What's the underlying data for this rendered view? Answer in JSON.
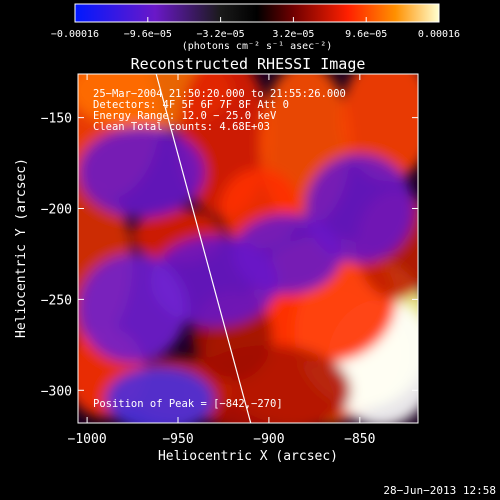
{
  "chart_data": {
    "type": "heatmap",
    "title": "Reconstructed RHESSI Image",
    "xlabel": "Heliocentric X (arcsec)",
    "ylabel": "Heliocentric Y (arcsec)",
    "xlim": [
      -1005,
      -818
    ],
    "ylim": [
      -318,
      -126
    ],
    "x_ticks": [
      -1000,
      -950,
      -900,
      -850
    ],
    "y_ticks": [
      -150,
      -200,
      -250,
      -300
    ],
    "x_tick_labels": [
      "−1000",
      "−950",
      "−900",
      "−850"
    ],
    "y_tick_labels": [
      "−150",
      "−200",
      "−250",
      "−300"
    ],
    "colorbar": {
      "range": [
        -0.00016,
        0.00016
      ],
      "ticks": [
        -0.00016,
        -9.6e-05,
        -3.2e-05,
        3.2e-05,
        9.6e-05,
        0.00016
      ],
      "tick_labels": [
        "−0.00016",
        "−9.6e−05",
        "−3.2e−05",
        "3.2e−05",
        "9.6e−05",
        "0.00016"
      ],
      "unit_label": "(photons cm⁻² s⁻¹ asec⁻²)"
    },
    "annotations": [
      "25−Mar−2004 21:50:20.000 to 21:55:26.000",
      "Detectors: 4F 5F 6F 7F 8F  Att 0",
      "Energy Range: 12.0 − 25.0 keV",
      "Clean    Total counts: 4.68E+03"
    ],
    "peak_label": "Position of Peak = [−842,−270]",
    "peak_position": [
      -842,
      -270
    ],
    "limb_line": [
      [
        -962,
        -126
      ],
      [
        -910,
        -318
      ]
    ],
    "grid": false,
    "colormap": [
      "#0018ff",
      "#6a18c8",
      "#222222",
      "#000000",
      "#5a0000",
      "#e02000",
      "#ff8000",
      "#ffff70",
      "#ffffff"
    ]
  },
  "footer": {
    "timestamp": "28−Jun−2013 12:58"
  }
}
